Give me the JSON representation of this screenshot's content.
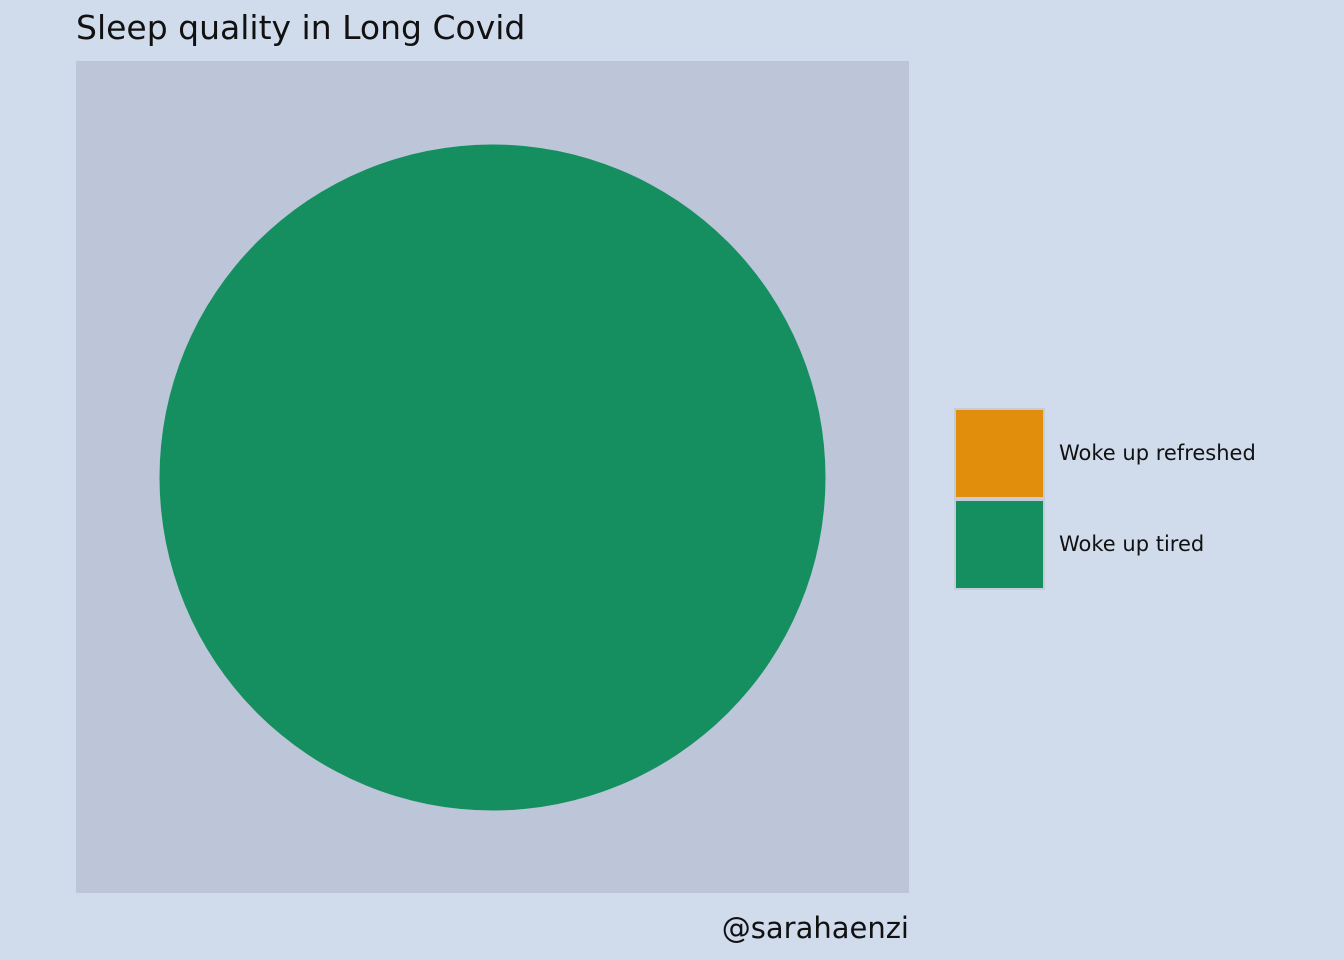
{
  "chart_data": {
    "type": "pie",
    "title": "Sleep quality in Long Covid",
    "caption": "@sarahaenzi",
    "categories": [
      "Woke up refreshed",
      "Woke up tired"
    ],
    "values": [
      0,
      100
    ],
    "colors": [
      "#e08e0b",
      "#158f60"
    ],
    "legend_position": "right",
    "panel_background": "#bcc6d8",
    "page_background": "#d0dbec"
  }
}
